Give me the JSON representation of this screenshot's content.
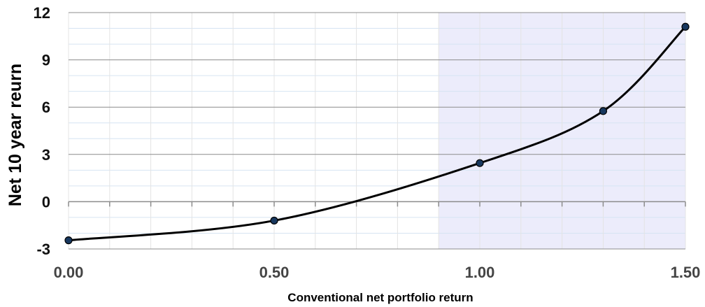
{
  "chart_data": {
    "type": "line",
    "title": "",
    "xlabel": "Conventional net portfolio return",
    "ylabel": "Net 10 year reurn",
    "xlim": [
      0,
      1.5
    ],
    "ylim": [
      -3,
      12
    ],
    "x_ticks": [
      0,
      0.5,
      1.0,
      1.5
    ],
    "x_tick_labels": [
      "0.00",
      "0.50",
      "1.00",
      "1.50"
    ],
    "y_ticks": [
      -3,
      0,
      3,
      6,
      9,
      12
    ],
    "y_tick_labels": [
      "-3",
      "0",
      "3",
      "6",
      "9",
      "12"
    ],
    "x_minor_step": 0.1,
    "y_minor_step": 1,
    "grid": true,
    "legend": "none",
    "highlight_region": {
      "x_from": 0.9,
      "x_to": 1.5,
      "color": "#ececfb"
    },
    "series": [
      {
        "x": [
          0.0,
          0.5,
          1.0,
          1.3,
          1.5
        ],
        "y": [
          -2.45,
          -1.2,
          2.45,
          5.75,
          11.1
        ],
        "line_color": "#000000",
        "marker_color": "#17375e",
        "smooth": true
      }
    ],
    "colors": {
      "major_grid": "#8c8c8c",
      "minor_grid": "#d6e4f2",
      "axis": "#8c8c8c",
      "vertical_grid": "#e4e4e4"
    }
  }
}
